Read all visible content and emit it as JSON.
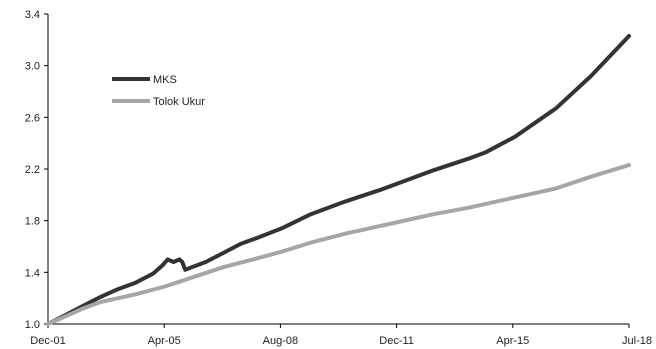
{
  "chart_data": {
    "type": "line",
    "title": "",
    "xlabel": "",
    "ylabel": "",
    "ylim": [
      1.0,
      3.4
    ],
    "xlim": [
      "2001-12",
      "2018-07"
    ],
    "y_ticks": [
      "1.0",
      "1.4",
      "1.8",
      "2.2",
      "2.6",
      "3.0",
      "3.4"
    ],
    "x_ticks": [
      "Dec-01",
      "Apr-05",
      "Aug-08",
      "Dec-11",
      "Apr-15",
      "Jul-18"
    ],
    "grid": false,
    "legend_position": "upper-left",
    "series": [
      {
        "name": "MKS",
        "color": "#333333",
        "points": [
          [
            "2001-12",
            1.0
          ],
          [
            "2002-06",
            1.07
          ],
          [
            "2002-12",
            1.14
          ],
          [
            "2003-06",
            1.21
          ],
          [
            "2003-12",
            1.27
          ],
          [
            "2004-06",
            1.32
          ],
          [
            "2004-12",
            1.39
          ],
          [
            "2005-03",
            1.45
          ],
          [
            "2005-05",
            1.5
          ],
          [
            "2005-07",
            1.48
          ],
          [
            "2005-09",
            1.5
          ],
          [
            "2005-10",
            1.48
          ],
          [
            "2005-11",
            1.42
          ],
          [
            "2006-06",
            1.48
          ],
          [
            "2006-12",
            1.55
          ],
          [
            "2007-06",
            1.62
          ],
          [
            "2007-12",
            1.67
          ],
          [
            "2008-08",
            1.74
          ],
          [
            "2009-06",
            1.85
          ],
          [
            "2010-06",
            1.95
          ],
          [
            "2011-06",
            2.04
          ],
          [
            "2011-12",
            2.09
          ],
          [
            "2012-12",
            2.19
          ],
          [
            "2013-12",
            2.28
          ],
          [
            "2014-06",
            2.33
          ],
          [
            "2015-04",
            2.45
          ],
          [
            "2016-06",
            2.67
          ],
          [
            "2017-06",
            2.92
          ],
          [
            "2018-07",
            3.23
          ]
        ]
      },
      {
        "name": "Tolok Ukur",
        "color": "#a6a6a6",
        "points": [
          [
            "2001-12",
            1.0
          ],
          [
            "2002-06",
            1.06
          ],
          [
            "2002-12",
            1.12
          ],
          [
            "2003-06",
            1.17
          ],
          [
            "2003-12",
            1.2
          ],
          [
            "2004-06",
            1.23
          ],
          [
            "2005-04",
            1.29
          ],
          [
            "2005-12",
            1.35
          ],
          [
            "2006-12",
            1.44
          ],
          [
            "2007-12",
            1.51
          ],
          [
            "2008-08",
            1.56
          ],
          [
            "2009-06",
            1.63
          ],
          [
            "2010-06",
            1.7
          ],
          [
            "2011-06",
            1.76
          ],
          [
            "2011-12",
            1.79
          ],
          [
            "2012-12",
            1.85
          ],
          [
            "2013-12",
            1.9
          ],
          [
            "2015-04",
            1.98
          ],
          [
            "2016-06",
            2.05
          ],
          [
            "2017-06",
            2.14
          ],
          [
            "2018-07",
            2.23
          ]
        ]
      }
    ]
  }
}
